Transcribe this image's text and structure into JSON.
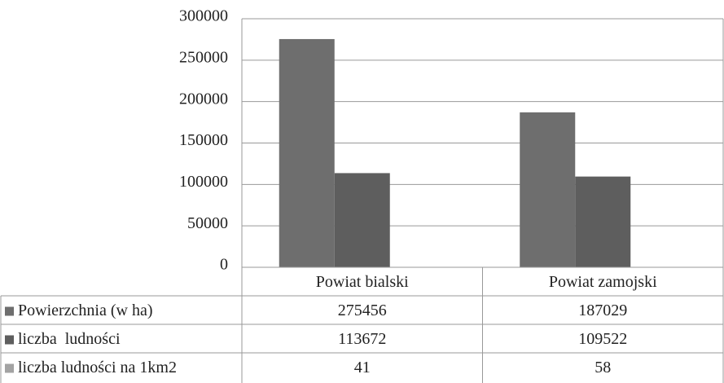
{
  "chart_data": {
    "type": "bar",
    "categories": [
      "Powiat bialski",
      "Powiat zamojski"
    ],
    "series": [
      {
        "name": "Powierzchnia (w ha)",
        "color": "#6e6e6e",
        "values": [
          275456,
          187029
        ]
      },
      {
        "name": "liczba  ludności",
        "color": "#5e5e5e",
        "values": [
          113672,
          109522
        ]
      },
      {
        "name": "liczba ludności na 1km2",
        "color": "#a3a3a3",
        "values": [
          41,
          58
        ]
      }
    ],
    "ylim": [
      0,
      300000
    ],
    "yticks": [
      0,
      50000,
      100000,
      150000,
      200000,
      250000,
      300000
    ],
    "grid": true
  }
}
